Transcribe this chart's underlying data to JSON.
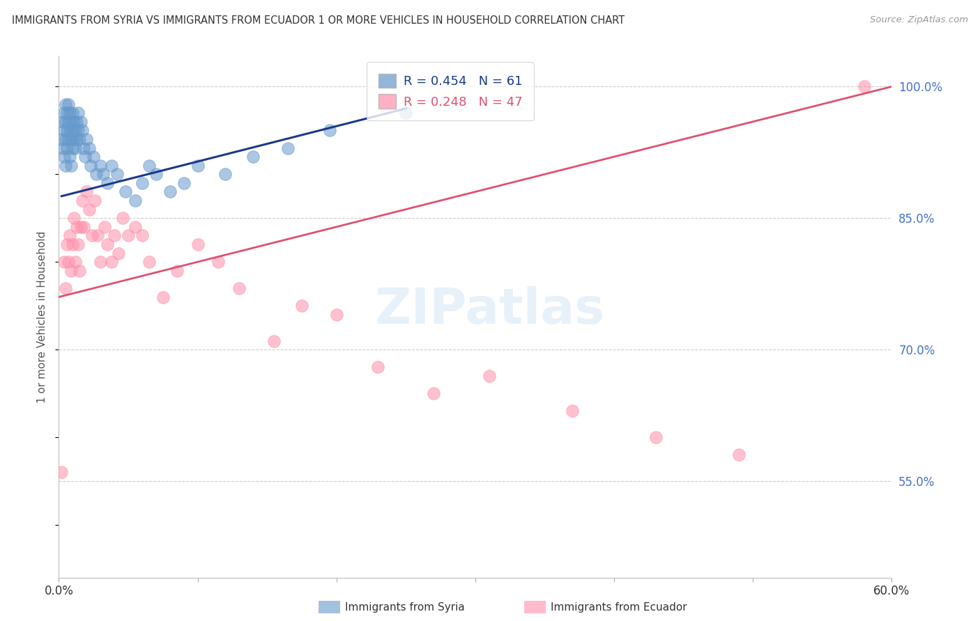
{
  "title": "IMMIGRANTS FROM SYRIA VS IMMIGRANTS FROM ECUADOR 1 OR MORE VEHICLES IN HOUSEHOLD CORRELATION CHART",
  "source": "Source: ZipAtlas.com",
  "ylabel": "1 or more Vehicles in Household",
  "xlim": [
    0.0,
    0.6
  ],
  "ylim": [
    0.44,
    1.035
  ],
  "yticks": [
    0.55,
    0.7,
    0.85,
    1.0
  ],
  "ytick_labels": [
    "55.0%",
    "70.0%",
    "85.0%",
    "100.0%"
  ],
  "legend_syria_R": "R = 0.454",
  "legend_syria_N": "N = 61",
  "legend_ecuador_R": "R = 0.248",
  "legend_ecuador_N": "N = 47",
  "legend_syria_label": "Immigrants from Syria",
  "legend_ecuador_label": "Immigrants from Ecuador",
  "syria_color": "#6699CC",
  "ecuador_color": "#FF8FAB",
  "syria_line_color": "#1A3A8A",
  "ecuador_line_color": "#E05070",
  "background_color": "#FFFFFF",
  "syria_x": [
    0.002,
    0.003,
    0.003,
    0.004,
    0.004,
    0.004,
    0.005,
    0.005,
    0.005,
    0.005,
    0.006,
    0.006,
    0.006,
    0.007,
    0.007,
    0.007,
    0.008,
    0.008,
    0.008,
    0.009,
    0.009,
    0.009,
    0.01,
    0.01,
    0.01,
    0.011,
    0.011,
    0.012,
    0.012,
    0.013,
    0.013,
    0.014,
    0.014,
    0.015,
    0.016,
    0.017,
    0.018,
    0.019,
    0.02,
    0.022,
    0.023,
    0.025,
    0.027,
    0.03,
    0.032,
    0.035,
    0.038,
    0.042,
    0.048,
    0.055,
    0.06,
    0.065,
    0.07,
    0.08,
    0.09,
    0.1,
    0.12,
    0.14,
    0.165,
    0.195,
    0.25
  ],
  "syria_y": [
    0.94,
    0.96,
    0.93,
    0.97,
    0.95,
    0.92,
    0.98,
    0.96,
    0.94,
    0.91,
    0.97,
    0.95,
    0.93,
    0.98,
    0.96,
    0.94,
    0.97,
    0.95,
    0.92,
    0.96,
    0.94,
    0.91,
    0.97,
    0.95,
    0.93,
    0.96,
    0.94,
    0.95,
    0.93,
    0.96,
    0.94,
    0.97,
    0.95,
    0.94,
    0.96,
    0.95,
    0.93,
    0.92,
    0.94,
    0.93,
    0.91,
    0.92,
    0.9,
    0.91,
    0.9,
    0.89,
    0.91,
    0.9,
    0.88,
    0.87,
    0.89,
    0.91,
    0.9,
    0.88,
    0.89,
    0.91,
    0.9,
    0.92,
    0.93,
    0.95,
    0.97
  ],
  "ecuador_x": [
    0.002,
    0.004,
    0.005,
    0.006,
    0.007,
    0.008,
    0.009,
    0.01,
    0.011,
    0.012,
    0.013,
    0.014,
    0.015,
    0.016,
    0.017,
    0.018,
    0.02,
    0.022,
    0.024,
    0.026,
    0.028,
    0.03,
    0.033,
    0.035,
    0.038,
    0.04,
    0.043,
    0.046,
    0.05,
    0.055,
    0.06,
    0.065,
    0.075,
    0.085,
    0.1,
    0.115,
    0.13,
    0.155,
    0.175,
    0.2,
    0.23,
    0.27,
    0.31,
    0.37,
    0.43,
    0.49,
    0.58
  ],
  "ecuador_y": [
    0.56,
    0.8,
    0.77,
    0.82,
    0.8,
    0.83,
    0.79,
    0.82,
    0.85,
    0.8,
    0.84,
    0.82,
    0.79,
    0.84,
    0.87,
    0.84,
    0.88,
    0.86,
    0.83,
    0.87,
    0.83,
    0.8,
    0.84,
    0.82,
    0.8,
    0.83,
    0.81,
    0.85,
    0.83,
    0.84,
    0.83,
    0.8,
    0.76,
    0.79,
    0.82,
    0.8,
    0.77,
    0.71,
    0.75,
    0.74,
    0.68,
    0.65,
    0.67,
    0.63,
    0.6,
    0.58,
    1.0
  ],
  "syria_trend_x": [
    0.002,
    0.25
  ],
  "syria_trend_y": [
    0.875,
    0.975
  ],
  "ecuador_trend_x": [
    0.0,
    0.6
  ],
  "ecuador_trend_y": [
    0.76,
    1.0
  ]
}
